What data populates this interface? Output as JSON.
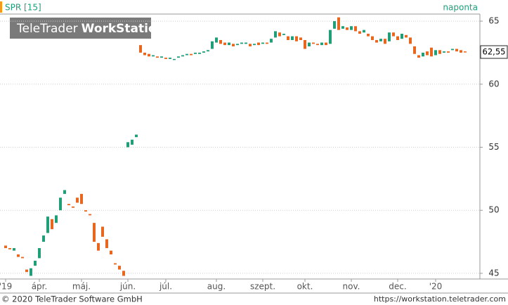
{
  "chart_data": {
    "type": "candlestick",
    "title": "SPR [15]",
    "interval": "naponta",
    "watermark": [
      "TeleTrader",
      "WorkStation"
    ],
    "categories": [
      "'19",
      null,
      null,
      null,
      null,
      null,
      null,
      null,
      "ápr.",
      null,
      null,
      null,
      null,
      null,
      null,
      null,
      null,
      null,
      "máj.",
      null,
      null,
      null,
      null,
      null,
      null,
      null,
      null,
      null,
      null,
      "jún.",
      null,
      null,
      null,
      null,
      null,
      null,
      null,
      null,
      "júl.",
      null,
      null,
      null,
      null,
      null,
      null,
      null,
      null,
      null,
      null,
      null,
      "aug.",
      null,
      null,
      null,
      null,
      null,
      null,
      null,
      null,
      null,
      null,
      "szept.",
      null,
      null,
      null,
      null,
      null,
      null,
      null,
      null,
      null,
      "okt.",
      null,
      null,
      null,
      null,
      null,
      null,
      null,
      null,
      null,
      null,
      "nov.",
      null,
      null,
      null,
      null,
      null,
      null,
      null,
      null,
      null,
      null,
      "dec.",
      null,
      null,
      null,
      null,
      null,
      null,
      null,
      null,
      "'20",
      null,
      null,
      null,
      null,
      null,
      null,
      null
    ],
    "open": [
      47.2,
      47.0,
      46.8,
      46.5,
      46.3,
      45.3,
      44.8,
      45.6,
      46.2,
      47.5,
      48.2,
      49.3,
      49.0,
      50.0,
      51.3,
      50.5,
      50.3,
      51.0,
      51.3,
      50.0,
      49.7,
      49.0,
      47.4,
      48.7,
      47.7,
      46.8,
      45.8,
      45.6,
      45.2,
      55.0,
      55.2,
      55.8,
      63.1,
      62.5,
      62.4,
      62.2,
      62.2,
      62.1,
      62.1,
      62.0,
      62.0,
      62.1,
      62.2,
      62.3,
      62.4,
      62.4,
      62.4,
      62.5,
      62.6,
      62.8,
      63.3,
      63.5,
      63.3,
      63.1,
      63.2,
      63.1,
      63.2,
      63.2,
      63.2,
      63.1,
      63.3,
      63.2,
      63.3,
      63.3,
      63.7,
      64.1,
      63.9,
      63.8,
      63.5,
      63.8,
      63.7,
      63.5,
      63.0,
      63.3,
      63.2,
      63.1,
      63.3,
      63.2,
      64.4,
      65.3,
      64.4,
      64.5,
      64.3,
      64.6,
      64.2,
      64.1,
      64.0,
      63.8,
      63.5,
      63.4,
      63.6,
      63.4,
      64.1,
      63.8,
      63.6,
      63.9,
      63.7,
      63.0,
      62.3,
      62.2,
      62.6,
      62.9,
      62.3,
      62.7,
      62.5,
      62.6,
      62.7,
      62.8,
      62.7,
      62.6
    ],
    "close": [
      47.0,
      46.9,
      47.0,
      46.3,
      46.2,
      45.1,
      45.4,
      46.0,
      47.0,
      48.0,
      49.5,
      48.5,
      49.6,
      51.0,
      51.6,
      50.4,
      50.2,
      50.6,
      50.5,
      49.9,
      49.6,
      47.5,
      46.8,
      47.9,
      47.0,
      46.5,
      45.7,
      45.3,
      44.8,
      55.4,
      55.6,
      56.0,
      62.5,
      62.3,
      62.2,
      62.3,
      62.1,
      62.2,
      62.0,
      62.1,
      62.0,
      62.2,
      62.3,
      62.4,
      62.3,
      62.5,
      62.5,
      62.6,
      62.7,
      63.4,
      63.7,
      63.2,
      63.1,
      63.3,
      63.0,
      63.2,
      63.3,
      63.3,
      63.0,
      63.2,
      63.1,
      63.3,
      63.2,
      63.6,
      64.2,
      63.8,
      64.0,
      63.5,
      63.8,
      63.4,
      63.5,
      62.8,
      63.3,
      63.2,
      63.1,
      63.3,
      63.1,
      64.3,
      65.0,
      64.3,
      64.6,
      64.3,
      64.6,
      64.2,
      64.0,
      64.3,
      63.8,
      63.5,
      63.3,
      63.6,
      63.2,
      64.1,
      63.8,
      63.5,
      64.0,
      63.7,
      63.2,
      62.4,
      62.1,
      62.5,
      62.3,
      62.2,
      62.7,
      62.4,
      62.6,
      62.5,
      62.8,
      62.6,
      62.5,
      62.55
    ],
    "up_color": "#1f9e78",
    "down_color": "#e8661e",
    "last_price": {
      "value": 62.55,
      "label": "62,55"
    },
    "ylim": [
      44.55,
      65.45
    ],
    "yticks": [
      45,
      50,
      55,
      60,
      65
    ],
    "grid": true
  },
  "footer": {
    "left": "© 2020 TeleTrader Software GmbH",
    "right": "https://workstation.teletrader.com"
  }
}
